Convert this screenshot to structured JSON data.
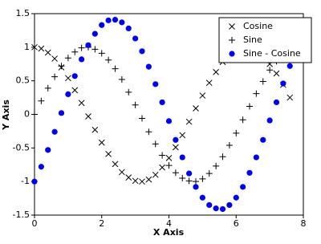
{
  "chart_data": {
    "type": "scatter",
    "x_label": "X Axis",
    "y_label": "Y Axis",
    "x": [
      0,
      0.2,
      0.4,
      0.6,
      0.8,
      1.0,
      1.2,
      1.4,
      1.6,
      1.8,
      2.0,
      2.2,
      2.4,
      2.6,
      2.8,
      3.0,
      3.2,
      3.4,
      3.6,
      3.8,
      4.0,
      4.2,
      4.4,
      4.6,
      4.8,
      5.0,
      5.2,
      5.4,
      5.6,
      5.8,
      6.0,
      6.2,
      6.4,
      6.6,
      6.8,
      7.0,
      7.2,
      7.4,
      7.6
    ],
    "series": [
      {
        "name": "Cosine",
        "color": "#000000",
        "marker": "x",
        "values": [
          1,
          0.98,
          0.92,
          0.83,
          0.7,
          0.54,
          0.36,
          0.17,
          -0.03,
          -0.23,
          -0.42,
          -0.59,
          -0.74,
          -0.86,
          -0.94,
          -0.99,
          -1.0,
          -0.97,
          -0.9,
          -0.79,
          -0.65,
          -0.49,
          -0.31,
          -0.11,
          0.09,
          0.28,
          0.47,
          0.63,
          0.78,
          0.89,
          0.96,
          1.0,
          0.99,
          0.95,
          0.87,
          0.75,
          0.61,
          0.44,
          0.25
        ]
      },
      {
        "name": "Sine",
        "color": "#000000",
        "marker": "+",
        "values": [
          0,
          0.2,
          0.39,
          0.56,
          0.72,
          0.84,
          0.93,
          0.99,
          1.0,
          0.97,
          0.91,
          0.81,
          0.68,
          0.52,
          0.33,
          0.14,
          -0.06,
          -0.26,
          -0.44,
          -0.61,
          -0.76,
          -0.87,
          -0.95,
          -0.99,
          -1.0,
          -0.96,
          -0.88,
          -0.77,
          -0.63,
          -0.46,
          -0.28,
          -0.08,
          0.12,
          0.31,
          0.49,
          0.66,
          0.79,
          0.9,
          0.97
        ]
      },
      {
        "name": "Sine - Cosine",
        "color": "#0000ff",
        "marker": "o",
        "values": [
          -1,
          -0.78,
          -0.53,
          -0.26,
          0.02,
          0.3,
          0.57,
          0.82,
          1.03,
          1.2,
          1.33,
          1.4,
          1.41,
          1.37,
          1.28,
          1.13,
          0.94,
          0.71,
          0.45,
          0.18,
          -0.1,
          -0.38,
          -0.64,
          -0.88,
          -1.08,
          -1.24,
          -1.35,
          -1.4,
          -1.41,
          -1.35,
          -1.24,
          -1.08,
          -0.87,
          -0.64,
          -0.38,
          -0.09,
          0.18,
          0.46,
          0.72
        ]
      }
    ],
    "xlim": [
      0,
      8
    ],
    "xticks": [
      0,
      2,
      4,
      6,
      8
    ],
    "ylim": [
      -1.5,
      1.5
    ],
    "yticks": [
      -1.5,
      -1,
      -0.5,
      0,
      0.5,
      1,
      1.5
    ],
    "legend": "top-right"
  }
}
